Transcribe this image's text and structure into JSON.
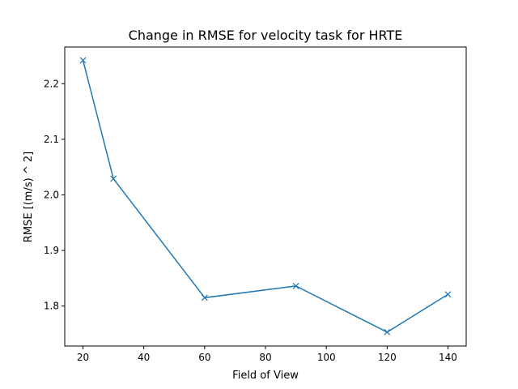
{
  "chart_data": {
    "type": "line",
    "title": "Change in RMSE for velocity task for HRTE",
    "xlabel": "Field of View",
    "ylabel": "RMSE [(m/s) ^ 2]",
    "xlim": [
      14,
      146
    ],
    "ylim": [
      1.728,
      2.266
    ],
    "xticks": [
      20,
      40,
      60,
      80,
      100,
      120,
      140
    ],
    "yticks": [
      1.8,
      1.9,
      2.0,
      2.1,
      2.2
    ],
    "xtick_labels": [
      "20",
      "40",
      "60",
      "80",
      "100",
      "120",
      "140"
    ],
    "ytick_labels": [
      "1.8",
      "1.9",
      "2.0",
      "2.1",
      "2.2"
    ],
    "grid": false,
    "series": [
      {
        "x": [
          20,
          30,
          60,
          90,
          120,
          140
        ],
        "y": [
          2.242,
          2.029,
          1.815,
          1.836,
          1.753,
          1.821
        ],
        "color": "#1f77b4",
        "marker": "x"
      }
    ]
  }
}
